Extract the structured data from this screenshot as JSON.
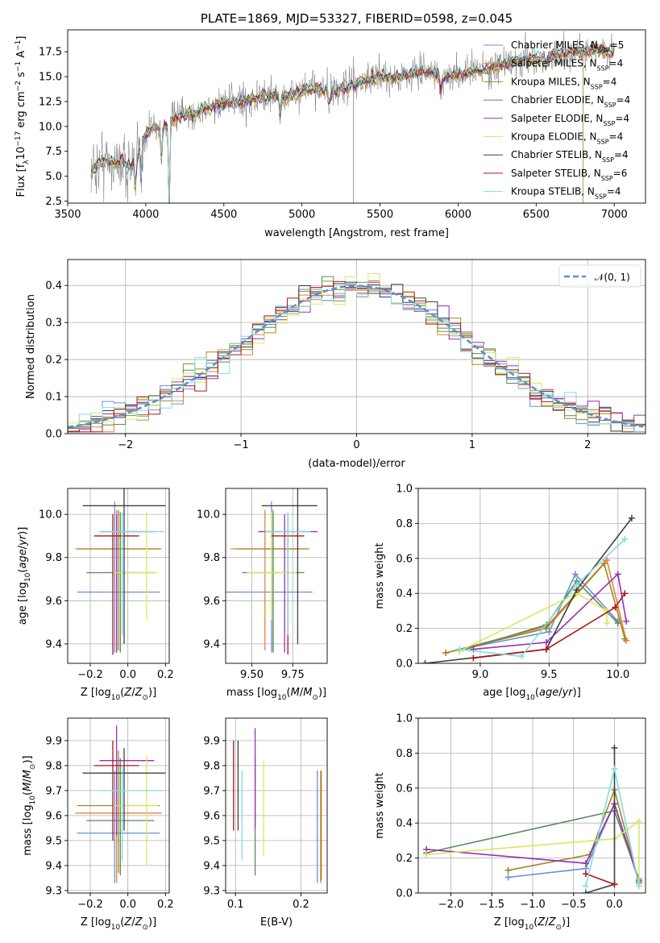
{
  "models": [
    {
      "name": "Chabrier MILES",
      "nssp": "5",
      "color": "#6a8fd8"
    },
    {
      "name": "Salpeter MILES",
      "nssp": "4",
      "color": "#e8803a"
    },
    {
      "name": "Kroupa MILES",
      "nssp": "4",
      "color": "#a08820"
    },
    {
      "name": "Chabrier ELODIE",
      "nssp": "4",
      "color": "#5a8a5a"
    },
    {
      "name": "Salpeter ELODIE",
      "nssp": "4",
      "color": "#9a30b0"
    },
    {
      "name": "Kroupa ELODIE",
      "nssp": "4",
      "color": "#d8e860"
    },
    {
      "name": "Chabrier STELIB",
      "nssp": "4",
      "color": "#404040"
    },
    {
      "name": "Salpeter STELIB",
      "nssp": "6",
      "color": "#b01818"
    },
    {
      "name": "Kroupa STELIB",
      "nssp": "4",
      "color": "#80dde0"
    }
  ],
  "chart_data": [
    {
      "type": "line",
      "title": "PLATE=1869, MJD=53327, FIBERID=0598, z=0.045",
      "xlabel": "wavelength [Angstrom, rest frame]",
      "ylabel": "Flux [f_λ 10^-17 erg cm^-2 s^-1 A^-1]",
      "xlim": [
        3500,
        7200
      ],
      "ylim": [
        2.3,
        19.7
      ],
      "xticks": [
        3500,
        4000,
        4500,
        5000,
        5500,
        6000,
        6500,
        7000
      ],
      "yticks": [
        2.5,
        5.0,
        7.5,
        10.0,
        12.5,
        15.0,
        17.5
      ],
      "legend": "top-right",
      "continuum": [
        [
          3650,
          5.5
        ],
        [
          3700,
          6.3
        ],
        [
          3750,
          6.8
        ],
        [
          3800,
          6.2
        ],
        [
          3850,
          6.5
        ],
        [
          3900,
          5.8
        ],
        [
          3950,
          7.4
        ],
        [
          4000,
          9.2
        ],
        [
          4050,
          10.0
        ],
        [
          4100,
          9.6
        ],
        [
          4150,
          10.4
        ],
        [
          4200,
          11.0
        ],
        [
          4300,
          11.2
        ],
        [
          4400,
          11.9
        ],
        [
          4500,
          12.3
        ],
        [
          4600,
          12.5
        ],
        [
          4700,
          12.8
        ],
        [
          4800,
          13.1
        ],
        [
          4900,
          13.1
        ],
        [
          5000,
          13.5
        ],
        [
          5100,
          13.9
        ],
        [
          5200,
          13.4
        ],
        [
          5300,
          14.0
        ],
        [
          5400,
          14.6
        ],
        [
          5500,
          15.0
        ],
        [
          5600,
          14.9
        ],
        [
          5700,
          15.3
        ],
        [
          5800,
          15.6
        ],
        [
          5900,
          15.0
        ],
        [
          6000,
          15.2
        ],
        [
          6100,
          15.6
        ],
        [
          6200,
          15.8
        ],
        [
          6300,
          16.3
        ],
        [
          6400,
          16.6
        ],
        [
          6500,
          16.9
        ],
        [
          6600,
          17.1
        ],
        [
          6700,
          17.4
        ],
        [
          6800,
          17.5
        ],
        [
          6900,
          17.7
        ],
        [
          7000,
          17.4
        ]
      ]
    },
    {
      "type": "line",
      "subtype": "step-histogram",
      "xlabel": "(data-model)/error",
      "ylabel": "Normed distribution",
      "xlim": [
        -2.5,
        2.5
      ],
      "ylim": [
        0,
        0.47
      ],
      "xticks": [
        -2,
        -1,
        0,
        1,
        2
      ],
      "yticks": [
        0.0,
        0.1,
        0.2,
        0.3,
        0.4
      ],
      "grid": true,
      "legend": "top-right",
      "reference": {
        "name": "𝒩(0, 1)",
        "color": "#5b8fd0",
        "mean": 0,
        "sigma": 1
      }
    },
    {
      "type": "scatter",
      "subtype": "errorbar",
      "xlabel": "Z [log10(Z/Z⊙)]",
      "ylabel": "age  [log10(age/yr)]",
      "xlim": [
        -0.32,
        0.22
      ],
      "ylim": [
        9.31,
        10.12
      ],
      "xticks": [
        -0.2,
        0.0,
        0.2
      ],
      "yticks": [
        9.4,
        9.6,
        9.8,
        10.0
      ],
      "points": [
        {
          "x": -0.07,
          "xerr": [
            0.2,
            0.24
          ],
          "y": 9.64,
          "yerr": [
            0.28,
            0.42
          ]
        },
        {
          "x": -0.06,
          "xerr": [
            0.22,
            0.24
          ],
          "y": 9.84,
          "yerr": [
            0.47,
            0.18
          ]
        },
        {
          "x": -0.05,
          "xerr": [
            0.22,
            0.22
          ],
          "y": 9.84,
          "yerr": [
            0.47,
            0.18
          ]
        },
        {
          "x": -0.04,
          "xerr": [
            0.18,
            0.18
          ],
          "y": 9.73,
          "yerr": [
            0.37,
            0.28
          ]
        },
        {
          "x": -0.06,
          "xerr": [
            0.09,
            0.2
          ],
          "y": 9.92,
          "yerr": [
            0.56,
            0.08
          ]
        },
        {
          "x": 0.1,
          "xerr": [
            0.18,
            0.06
          ],
          "y": 9.73,
          "yerr": [
            0.22,
            0.28
          ]
        },
        {
          "x": -0.02,
          "xerr": [
            0.22,
            0.22
          ],
          "y": 10.04,
          "yerr": [
            0.64,
            0.08
          ]
        },
        {
          "x": -0.08,
          "xerr": [
            0.1,
            0.14
          ],
          "y": 9.9,
          "yerr": [
            0.55,
            0.1
          ]
        },
        {
          "x": -0.03,
          "xerr": [
            0.12,
            0.22
          ],
          "y": 9.92,
          "yerr": [
            0.48,
            0.09
          ]
        }
      ]
    },
    {
      "type": "scatter",
      "subtype": "errorbar",
      "xlabel": "mass [log10(M/M⊙)]",
      "xlim": [
        9.34,
        9.96
      ],
      "ylim": [
        9.31,
        10.12
      ],
      "xticks": [
        9.5,
        9.75
      ],
      "yticks": [
        9.4,
        9.6,
        9.8,
        10.0
      ],
      "points": [
        {
          "x": 9.62,
          "xerr": [
            0.28,
            0.25
          ],
          "y": 9.64,
          "yerr": [
            0.28,
            0.42
          ]
        },
        {
          "x": 9.58,
          "xerr": [
            0.21,
            0.23
          ],
          "y": 9.84,
          "yerr": [
            0.47,
            0.18
          ]
        },
        {
          "x": 9.63,
          "xerr": [
            0.22,
            0.22
          ],
          "y": 9.84,
          "yerr": [
            0.47,
            0.18
          ]
        },
        {
          "x": 9.63,
          "xerr": [
            0.19,
            0.19
          ],
          "y": 9.73,
          "yerr": [
            0.37,
            0.28
          ]
        },
        {
          "x": 9.7,
          "xerr": [
            0.16,
            0.2
          ],
          "y": 9.92,
          "yerr": [
            0.56,
            0.08
          ]
        },
        {
          "x": 9.62,
          "xerr": [
            0.15,
            0.15
          ],
          "y": 9.73,
          "yerr": [
            0.22,
            0.28
          ]
        },
        {
          "x": 9.78,
          "xerr": [
            0.22,
            0.12
          ],
          "y": 10.04,
          "yerr": [
            0.64,
            0.08
          ]
        },
        {
          "x": 9.72,
          "xerr": [
            0.1,
            0.1
          ],
          "y": 9.9,
          "yerr": [
            0.55,
            0.1
          ]
        },
        {
          "x": 9.72,
          "xerr": [
            0.14,
            0.14
          ],
          "y": 9.92,
          "yerr": [
            0.48,
            0.09
          ]
        }
      ]
    },
    {
      "type": "line",
      "xlabel": "age  [log10(age/yr)]",
      "ylabel": "mass weight",
      "xlim": [
        8.55,
        10.2
      ],
      "ylim": [
        0,
        1.0
      ],
      "xticks": [
        9.0,
        9.5,
        10.0
      ],
      "yticks": [
        0.0,
        0.2,
        0.4,
        0.6,
        0.8,
        1.0
      ],
      "grid": true,
      "series": [
        {
          "x": [
            8.85,
            9.5,
            9.69,
            10.0
          ],
          "y": [
            0.08,
            0.18,
            0.51,
            0.24
          ]
        },
        {
          "x": [
            8.75,
            9.48,
            9.92,
            10.06
          ],
          "y": [
            0.06,
            0.21,
            0.59,
            0.13
          ]
        },
        {
          "x": [
            8.75,
            9.48,
            9.9,
            10.05
          ],
          "y": [
            0.06,
            0.2,
            0.57,
            0.14
          ]
        },
        {
          "x": [
            8.85,
            9.48,
            9.7,
            10.0
          ],
          "y": [
            0.07,
            0.22,
            0.47,
            0.23
          ]
        },
        {
          "x": [
            8.95,
            9.48,
            10.0,
            10.06
          ],
          "y": [
            0.08,
            0.12,
            0.51,
            0.24
          ]
        },
        {
          "x": [
            8.85,
            9.7,
            9.92,
            9.92
          ],
          "y": [
            0.07,
            0.4,
            0.3,
            0.23
          ]
        },
        {
          "x": [
            8.6,
            9.48,
            9.7,
            10.1
          ],
          "y": [
            0.0,
            0.08,
            0.42,
            0.83
          ]
        },
        {
          "x": [
            8.95,
            9.48,
            9.98,
            10.05
          ],
          "y": [
            0.03,
            0.08,
            0.32,
            0.4
          ]
        },
        {
          "x": [
            8.85,
            9.3,
            9.7,
            10.05
          ],
          "y": [
            0.08,
            0.04,
            0.45,
            0.71
          ]
        }
      ]
    },
    {
      "type": "scatter",
      "subtype": "errorbar",
      "xlabel": "Z [log10(Z/Z⊙)]",
      "ylabel": "mass [log10(M/M⊙)]",
      "xlim": [
        -0.32,
        0.22
      ],
      "ylim": [
        9.29,
        9.99
      ],
      "xticks": [
        -0.2,
        0.0,
        0.2
      ],
      "yticks": [
        9.3,
        9.4,
        9.5,
        9.6,
        9.7,
        9.8,
        9.9
      ],
      "points": [
        {
          "x": -0.07,
          "xerr": [
            0.2,
            0.24
          ],
          "y": 9.53,
          "yerr": [
            0.2,
            0.25
          ]
        },
        {
          "x": -0.06,
          "xerr": [
            0.22,
            0.24
          ],
          "y": 9.61,
          "yerr": [
            0.28,
            0.2
          ]
        },
        {
          "x": -0.05,
          "xerr": [
            0.22,
            0.22
          ],
          "y": 9.64,
          "yerr": [
            0.27,
            0.22
          ]
        },
        {
          "x": -0.04,
          "xerr": [
            0.18,
            0.18
          ],
          "y": 9.58,
          "yerr": [
            0.22,
            0.25
          ]
        },
        {
          "x": -0.06,
          "xerr": [
            0.09,
            0.2
          ],
          "y": 9.82,
          "yerr": [
            0.3,
            0.14
          ]
        },
        {
          "x": 0.1,
          "xerr": [
            0.18,
            0.06
          ],
          "y": 9.64,
          "yerr": [
            0.24,
            0.2
          ]
        },
        {
          "x": -0.02,
          "xerr": [
            0.22,
            0.22
          ],
          "y": 9.77,
          "yerr": [
            0.23,
            0.1
          ]
        },
        {
          "x": -0.08,
          "xerr": [
            0.1,
            0.14
          ],
          "y": 9.8,
          "yerr": [
            0.3,
            0.1
          ]
        },
        {
          "x": -0.03,
          "xerr": [
            0.12,
            0.22
          ],
          "y": 9.7,
          "yerr": [
            0.28,
            0.1
          ]
        }
      ]
    },
    {
      "type": "scatter",
      "subtype": "errorbar",
      "xlabel": "E(B-V)",
      "xlim": [
        0.085,
        0.24
      ],
      "ylim": [
        9.29,
        9.99
      ],
      "xticks": [
        0.1,
        0.2
      ],
      "yticks": [
        9.3,
        9.4,
        9.5,
        9.6,
        9.7,
        9.8,
        9.9
      ],
      "points": [
        {
          "x": 0.225,
          "y": 9.53,
          "yerr": [
            0.2,
            0.25
          ]
        },
        {
          "x": 0.23,
          "y": 9.61,
          "yerr": [
            0.28,
            0.17
          ]
        },
        {
          "x": 0.231,
          "y": 9.6,
          "yerr": [
            0.26,
            0.18
          ]
        },
        {
          "x": 0.13,
          "y": 9.6,
          "yerr": [
            0.24,
            0.23
          ]
        },
        {
          "x": 0.13,
          "y": 9.8,
          "yerr": [
            0.25,
            0.15
          ]
        },
        {
          "x": 0.143,
          "y": 9.64,
          "yerr": [
            0.2,
            0.18
          ]
        },
        {
          "x": 0.104,
          "y": 9.72,
          "yerr": [
            0.18,
            0.18
          ]
        },
        {
          "x": 0.097,
          "y": 9.74,
          "yerr": [
            0.2,
            0.16
          ]
        },
        {
          "x": 0.11,
          "y": 9.66,
          "yerr": [
            0.24,
            0.12
          ]
        }
      ]
    },
    {
      "type": "line",
      "xlabel": "Z [log10(Z/Z⊙)]",
      "ylabel": "mass weight",
      "xlim": [
        -2.4,
        0.38
      ],
      "ylim": [
        0,
        1.0
      ],
      "xticks": [
        -2.0,
        -1.5,
        -1.0,
        -0.5,
        0.0
      ],
      "yticks": [
        0.0,
        0.2,
        0.4,
        0.6,
        0.8,
        1.0
      ],
      "grid": true,
      "series": [
        {
          "x": [
            -1.3,
            -0.35,
            0.0,
            0.3
          ],
          "y": [
            0.09,
            0.14,
            0.51,
            0.06
          ]
        },
        {
          "x": -1.3,
          "y": 0.13
        },
        {
          "x": [
            -1.3,
            -0.3,
            0.0,
            0.3
          ],
          "y": [
            0.13,
            0.22,
            0.59,
            0.06
          ]
        },
        {
          "x": [
            -2.3,
            0.0,
            0.3
          ],
          "y": [
            0.23,
            0.47,
            0.08
          ]
        },
        {
          "x": [
            -2.3,
            -0.35,
            0.0,
            0.3
          ],
          "y": [
            0.25,
            0.17,
            0.51,
            0.07
          ]
        },
        {
          "x": [
            -2.3,
            0.0,
            0.3,
            0.3
          ],
          "y": [
            0.22,
            0.31,
            0.41,
            0.05
          ]
        },
        {
          "x": [
            -0.35,
            0.0,
            0.0
          ],
          "y": [
            0.0,
            0.05,
            0.83
          ]
        },
        {
          "x": [
            -0.35,
            0.0
          ],
          "y": [
            0.11,
            0.05
          ]
        },
        {
          "x": [
            -0.35,
            0.0,
            0.3
          ],
          "y": [
            0.04,
            0.71,
            0.04
          ]
        }
      ]
    }
  ]
}
